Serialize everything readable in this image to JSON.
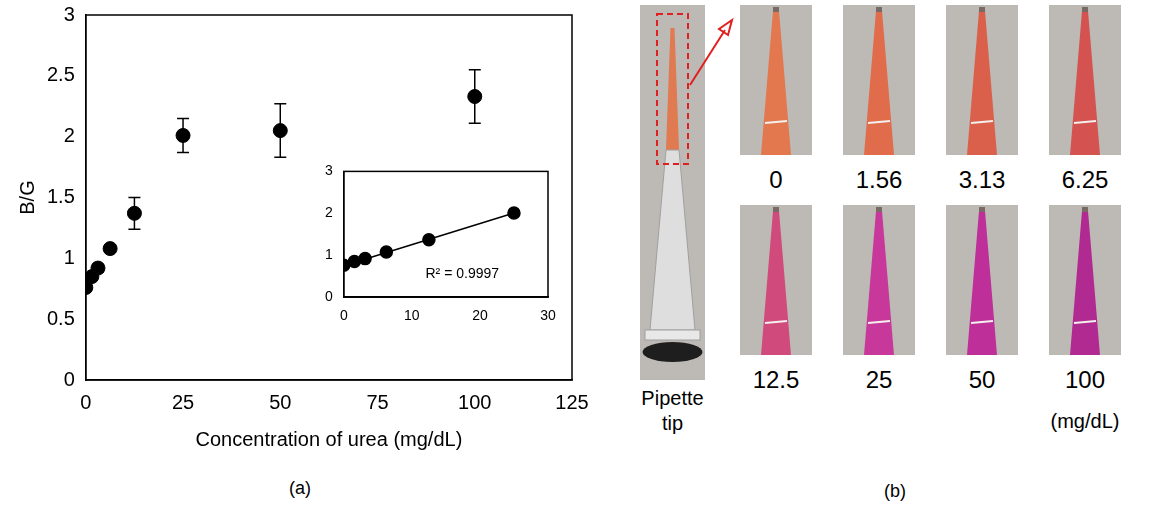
{
  "chart_data": [
    {
      "type": "scatter",
      "x_label": "Concentration of urea (mg/dL)",
      "y_label": "B/G",
      "x": [
        0,
        1.56,
        3.13,
        6.25,
        12.5,
        25,
        50,
        100
      ],
      "values": [
        0.76,
        0.85,
        0.92,
        1.08,
        1.37,
        2.01,
        2.05,
        2.33
      ],
      "error": [
        0.03,
        0.03,
        0.03,
        0.03,
        0.13,
        0.14,
        0.22,
        0.22
      ],
      "color": "#000000",
      "marker": "circle",
      "xlim": [
        0,
        125
      ],
      "xticks": [
        0,
        25,
        50,
        75,
        100,
        125
      ],
      "ylim": [
        0,
        3
      ],
      "yticks": [
        0,
        0.5,
        1,
        1.5,
        2,
        2.5,
        3
      ],
      "grid": false
    },
    {
      "type": "scatter",
      "annotation": "R² = 0.9997",
      "series": [
        {
          "type": "scatter",
          "x": [
            0,
            1.56,
            3.13,
            6.25,
            12.5,
            25
          ],
          "values": [
            0.76,
            0.85,
            0.92,
            1.08,
            1.37,
            2.01
          ],
          "color": "#000000",
          "marker": "circle"
        },
        {
          "type": "line",
          "x": [
            0,
            25
          ],
          "values": [
            0.75,
            2.01
          ],
          "color": "#000000",
          "line_style": "solid",
          "marker": "none"
        }
      ],
      "xlim": [
        0,
        30
      ],
      "xticks": [
        0,
        10,
        20,
        30
      ],
      "ylim": [
        0,
        3
      ],
      "yticks": [
        0,
        1,
        2,
        3
      ],
      "grid": false
    }
  ],
  "captions": {
    "a": "(a)",
    "b": "(b)"
  },
  "panel_b": {
    "overview_label": "Pipette tip",
    "overview_color": "#e07a50",
    "unit": "(mg/dL)",
    "samples": [
      {
        "label": "0",
        "color": "#e3784f"
      },
      {
        "label": "1.56",
        "color": "#e06c4c"
      },
      {
        "label": "3.13",
        "color": "#db604c"
      },
      {
        "label": "6.25",
        "color": "#d4524f"
      },
      {
        "label": "12.5",
        "color": "#d04a7c"
      },
      {
        "label": "25",
        "color": "#c8389a"
      },
      {
        "label": "50",
        "color": "#bf2f9a"
      },
      {
        "label": "100",
        "color": "#b02a92"
      }
    ]
  }
}
